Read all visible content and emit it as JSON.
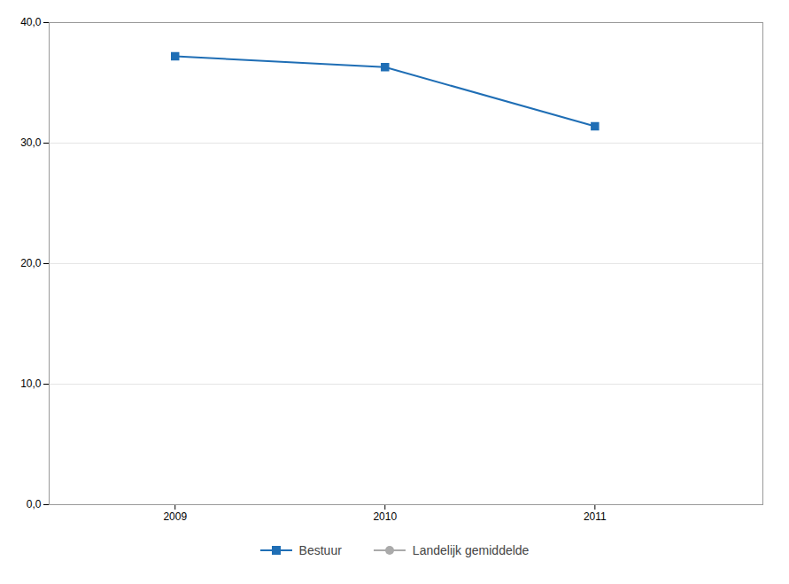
{
  "chart_data": {
    "type": "line",
    "x": [
      2009,
      2010,
      2011
    ],
    "series": [
      {
        "name": "Bestuur",
        "color": "#1F6EB5",
        "marker": "square",
        "values": [
          37.2,
          36.3,
          31.4
        ]
      },
      {
        "name": "Landelijk gemiddelde",
        "color": "#AAAAAA",
        "marker": "circle",
        "values": [
          null,
          null,
          null
        ]
      }
    ],
    "xlim": [
      2008.4,
      2011.8
    ],
    "xticks": [
      2009,
      2010,
      2011
    ],
    "ylim": [
      0,
      40
    ],
    "yticks": [
      {
        "value": 0,
        "label": "0,0"
      },
      {
        "value": 10,
        "label": "10,0"
      },
      {
        "value": 20,
        "label": "20,0"
      },
      {
        "value": 30,
        "label": "30,0"
      },
      {
        "value": 40,
        "label": "40,0"
      }
    ],
    "grid": "y",
    "legend": "bottom"
  }
}
